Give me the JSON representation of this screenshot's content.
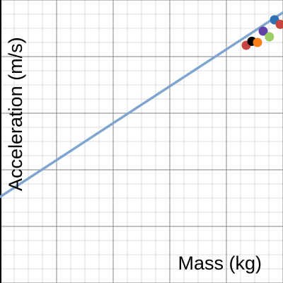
{
  "chart_data": {
    "type": "scatter",
    "title": "",
    "xlabel": "Mass (kg)",
    "ylabel": "Acceleration (m/s)",
    "xlim": [
      0,
      5
    ],
    "ylim": [
      0,
      5
    ],
    "grid": true,
    "trendline": {
      "x": [
        0,
        5
      ],
      "y": [
        1.52,
        4.78
      ]
    },
    "points": [
      {
        "x": 4.35,
        "y": 4.2,
        "color": "#c74440"
      },
      {
        "x": 4.45,
        "y": 4.27,
        "color": "#000000"
      },
      {
        "x": 4.55,
        "y": 4.25,
        "color": "#fa7e19"
      },
      {
        "x": 4.65,
        "y": 4.45,
        "color": "#6042a6"
      },
      {
        "x": 4.76,
        "y": 4.35,
        "color": "#9acd64"
      },
      {
        "x": 4.85,
        "y": 4.65,
        "color": "#2d70b3"
      },
      {
        "x": 4.95,
        "y": 4.57,
        "color": "#c74440"
      }
    ],
    "colors": {
      "line": "#7fa5cf",
      "minor_grid": "#dcdcdc",
      "major_grid": "#9a9a9a",
      "axis": "#000000"
    }
  }
}
